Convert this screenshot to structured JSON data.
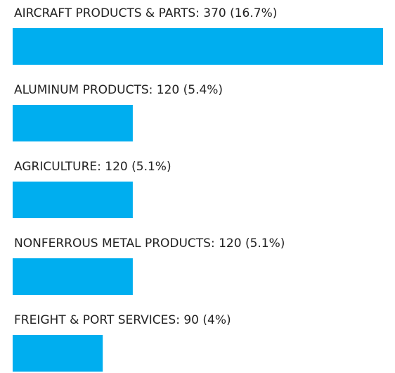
{
  "chart_data": {
    "type": "bar",
    "orientation": "horizontal",
    "categories": [
      "AIRCRAFT PRODUCTS & PARTS: 370 (16.7%)",
      "ALUMINUM PRODUCTS: 120 (5.4%)",
      "AGRICULTURE: 120 (5.1%)",
      "NONFERROUS METAL PRODUCTS: 120 (5.1%)",
      "FREIGHT & PORT SERVICES: 90 (4%)"
    ],
    "values": [
      370,
      120,
      120,
      120,
      90
    ],
    "color": "#00aeef"
  }
}
